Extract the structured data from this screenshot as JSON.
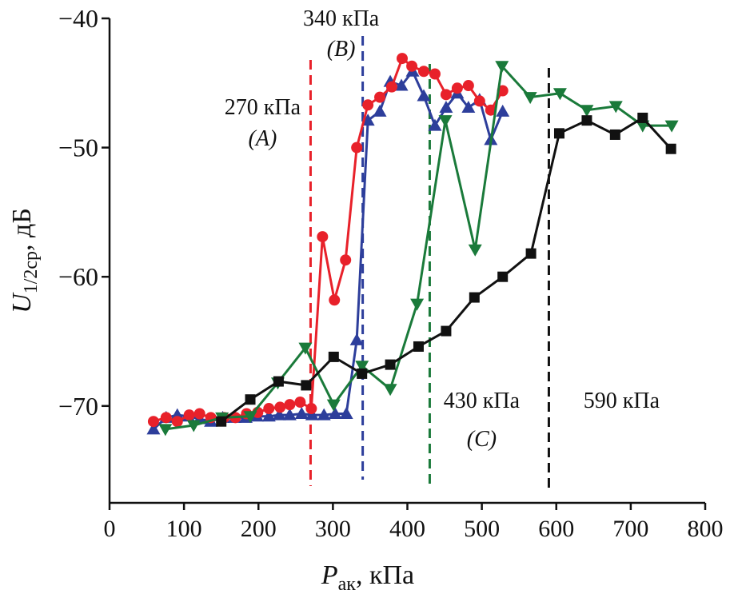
{
  "chart_data": {
    "type": "line",
    "xlabel": {
      "main": "P",
      "sub": "ак",
      "unit": ", кПа"
    },
    "ylabel": {
      "main": "U",
      "sub": "1/2ср",
      "unit": ", дБ"
    },
    "xlim": [
      0,
      800
    ],
    "ylim": [
      -77.5,
      -40
    ],
    "xticks": [
      0,
      100,
      200,
      300,
      400,
      500,
      600,
      700,
      800
    ],
    "yticks": [
      {
        "value": -70,
        "label": "−70"
      },
      {
        "value": -60,
        "label": "−60"
      },
      {
        "value": -50,
        "label": "−50"
      },
      {
        "value": -40,
        "label": "−40"
      }
    ],
    "series": [
      {
        "color": "#2d3e9b",
        "marker": "triangle-up",
        "x": [
          59,
          76,
          91,
          106,
          121,
          136,
          152,
          168,
          183,
          198,
          214,
          228,
          242,
          258,
          272,
          288,
          303,
          318,
          332,
          347,
          363,
          377,
          392,
          407,
          422,
          437,
          452,
          467,
          482,
          497,
          512,
          528
        ],
        "values": [
          -71.8,
          -70.9,
          -70.7,
          -70.8,
          -71.0,
          -71.2,
          -70.9,
          -70.9,
          -70.9,
          -70.8,
          -70.8,
          -70.7,
          -70.7,
          -70.6,
          -70.7,
          -70.7,
          -70.6,
          -70.6,
          -64.9,
          -47.9,
          -47.2,
          -44.9,
          -45.2,
          -44.1,
          -46.0,
          -48.3,
          -46.9,
          -45.8,
          -46.9,
          -46.3,
          -49.4,
          -47.2
        ]
      },
      {
        "color": "#e8212a",
        "marker": "circle",
        "x": [
          59,
          76,
          91,
          107,
          121,
          136,
          154,
          169,
          184,
          199,
          214,
          229,
          242,
          256,
          271,
          286,
          302,
          317,
          332,
          347,
          363,
          379,
          393,
          406,
          422,
          437,
          452,
          467,
          482,
          497,
          512,
          528
        ],
        "values": [
          -71.2,
          -70.9,
          -71.2,
          -70.7,
          -70.6,
          -70.9,
          -70.9,
          -70.9,
          -70.6,
          -70.5,
          -70.2,
          -70.1,
          -69.9,
          -69.7,
          -70.2,
          -56.9,
          -61.8,
          -58.7,
          -50.0,
          -46.7,
          -46.1,
          -45.3,
          -43.1,
          -43.7,
          -44.1,
          -44.3,
          -45.9,
          -45.4,
          -45.2,
          -46.4,
          -47.1,
          -45.6
        ]
      },
      {
        "color": "#1a7a3a",
        "marker": "triangle-down",
        "x": [
          75,
          113,
          151,
          189,
          226,
          263,
          301,
          339,
          377,
          413,
          451,
          491,
          527,
          565,
          605,
          641,
          680,
          716,
          755
        ],
        "values": [
          -71.8,
          -71.5,
          -70.9,
          -70.8,
          -68.2,
          -65.5,
          -69.9,
          -66.9,
          -68.7,
          -62.1,
          -47.9,
          -57.9,
          -43.7,
          -46.1,
          -45.8,
          -47.1,
          -46.8,
          -48.3,
          -48.3
        ]
      },
      {
        "color": "#111111",
        "marker": "square",
        "x": [
          150,
          189,
          227,
          264,
          301,
          339,
          377,
          415,
          452,
          490,
          528,
          566,
          604,
          641,
          679,
          716,
          754
        ],
        "values": [
          -71.2,
          -69.5,
          -68.1,
          -68.4,
          -66.2,
          -67.5,
          -66.8,
          -65.4,
          -64.2,
          -61.6,
          -60.0,
          -58.2,
          -48.9,
          -47.9,
          -49.0,
          -47.7,
          -50.1
        ]
      }
    ],
    "annotations": [
      {
        "x": 270,
        "label": "270 кПа",
        "letter": "(A)",
        "color": "#e8212a"
      },
      {
        "x": 340,
        "label": "340 кПа",
        "letter": "(B)",
        "color": "#2d3e9b"
      },
      {
        "x": 430,
        "label": "430 кПа",
        "letter": "(C)",
        "color": "#1a7a3a"
      },
      {
        "x": 590,
        "label": "590 кПа",
        "color": "#111111"
      }
    ]
  }
}
